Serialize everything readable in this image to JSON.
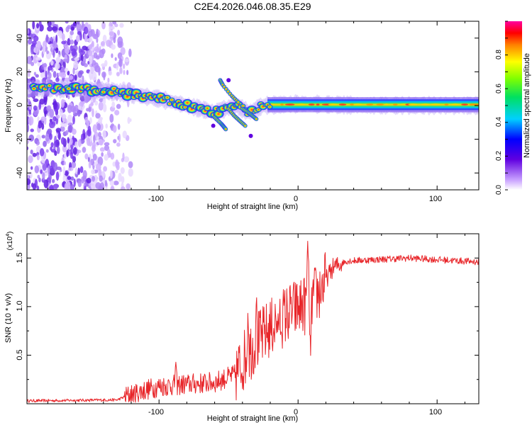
{
  "title": "C2E4.2026.046.08.35.E29",
  "chart_data": [
    {
      "type": "heatmap",
      "xlabel": "Height of straight line (km)",
      "ylabel": "Frequency (Hz)",
      "xlim": [
        -195,
        130
      ],
      "ylim": [
        -50,
        50
      ],
      "xticks": [
        "-100",
        "0",
        "100"
      ],
      "yticks": [
        "40",
        "20",
        "0",
        "-20",
        "-40"
      ],
      "colorbar": {
        "label": "Normalized spectral amplitude",
        "range": [
          0,
          1
        ],
        "ticks": [
          "0.0",
          "0.2",
          "0.4",
          "0.6",
          "0.8"
        ]
      },
      "dominant_track": [
        {
          "x": -190,
          "y": 10
        },
        {
          "x": -160,
          "y": 10
        },
        {
          "x": -130,
          "y": 8
        },
        {
          "x": -100,
          "y": 4
        },
        {
          "x": -80,
          "y": 0
        },
        {
          "x": -60,
          "y": -4
        },
        {
          "x": -45,
          "y": 0
        },
        {
          "x": -35,
          "y": -4
        },
        {
          "x": -25,
          "y": 0
        },
        {
          "x": 0,
          "y": 1
        },
        {
          "x": 50,
          "y": 0
        },
        {
          "x": 130,
          "y": 0
        }
      ]
    },
    {
      "type": "line",
      "xlabel": "Height of straight line (km)",
      "ylabel": "SNR (10 * v/v)",
      "yscale_label": "(x10",
      "yscale_exp": "4",
      "xlim": [
        -195,
        130
      ],
      "ylim": [
        0,
        1.75
      ],
      "xticks": [
        "-100",
        "0",
        "100"
      ],
      "yticks": [
        "0.5",
        "1.0",
        "1.5"
      ],
      "series": [
        {
          "name": "SNR",
          "color": "#e8262a",
          "trend": [
            {
              "x": -195,
              "y": 0.03
            },
            {
              "x": -130,
              "y": 0.04
            },
            {
              "x": -120,
              "y": 0.1
            },
            {
              "x": -100,
              "y": 0.18
            },
            {
              "x": -80,
              "y": 0.2
            },
            {
              "x": -60,
              "y": 0.22
            },
            {
              "x": -45,
              "y": 0.3
            },
            {
              "x": -35,
              "y": 0.55
            },
            {
              "x": -25,
              "y": 0.7
            },
            {
              "x": -15,
              "y": 0.85
            },
            {
              "x": -5,
              "y": 0.95
            },
            {
              "x": 5,
              "y": 1.02
            },
            {
              "x": 15,
              "y": 1.15
            },
            {
              "x": 25,
              "y": 1.4
            },
            {
              "x": 35,
              "y": 1.47
            },
            {
              "x": 80,
              "y": 1.5
            },
            {
              "x": 130,
              "y": 1.46
            }
          ],
          "peaks": [
            {
              "x": 7,
              "y": 1.72
            },
            {
              "x": 9,
              "y": 0.45
            },
            {
              "x": -30,
              "y": 1.15
            },
            {
              "x": -36,
              "y": 0.98
            },
            {
              "x": -88,
              "y": 0.45
            },
            {
              "x": -14,
              "y": 0.8
            }
          ]
        }
      ]
    }
  ]
}
